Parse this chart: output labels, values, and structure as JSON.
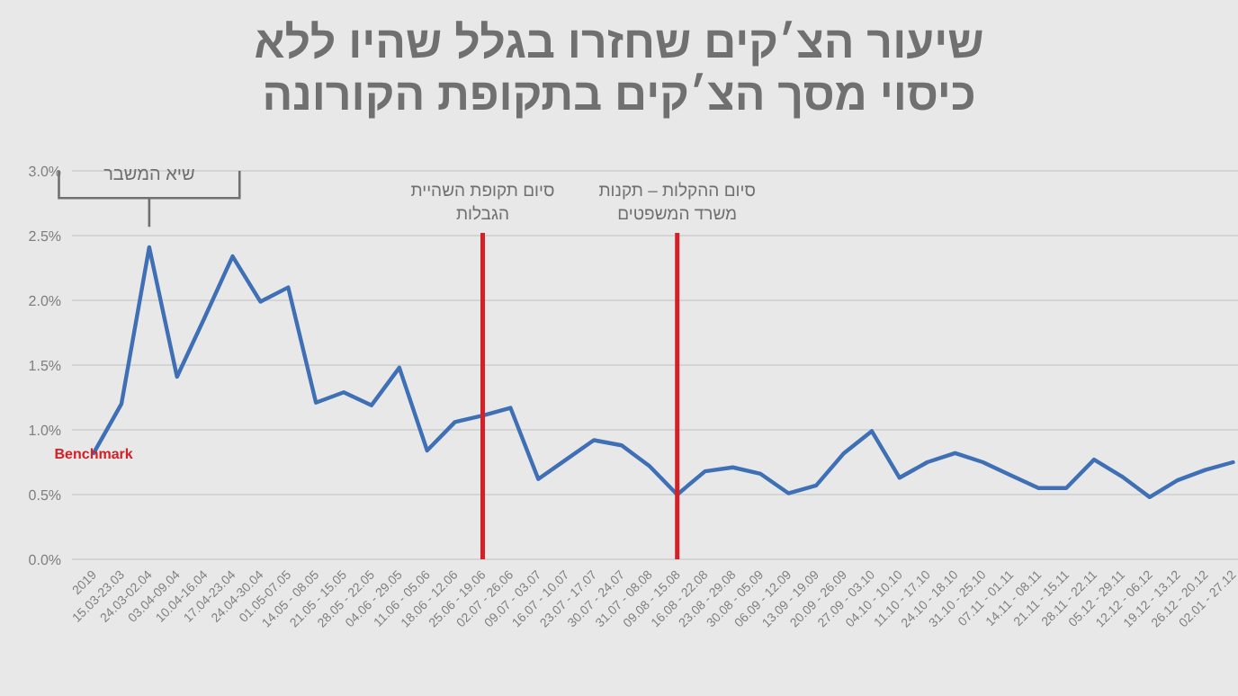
{
  "chart_data": {
    "type": "line",
    "title": "שיעור הצ׳קים שחזרו בגלל שהיו ללא כיסוי מסך הצ׳קים בתקופת הקורונה",
    "categories": [
      "2019",
      "15.03-23.03",
      "24.03-02.04",
      "03.04-09.04",
      "10.04-16.04",
      "17.04-23.04",
      "24.04-30.04",
      "01.05-07.05",
      "14.05 - 08.05",
      "21.05 - 15.05",
      "28.05 - 22.05",
      "04.06 - 29.05",
      "11.06 - 05.06",
      "18.06 - 12.06",
      "25.06 - 19.06",
      "02.07 - 26.06",
      "09.07 - 03.07",
      "16.07 - 10.07",
      "23.07 - 17.07",
      "30.07 - 24.07",
      "31.07 - 08.08",
      "09.08 - 15.08",
      "16.08 - 22.08",
      "23.08 - 29.08",
      "30.08 - 05.09",
      "06.09 - 12.09",
      "13.09 - 19.09",
      "20.09 - 26.09",
      "27.09 - 03.10",
      "04.10 - 10.10",
      "11.10 - 17.10",
      "24.10 - 18.10",
      "31.10 - 25.10",
      "07.11 - 01.11",
      "14.11 - 08.11",
      "21.11 - 15.11",
      "28.11 - 22.11",
      "05.12 - 29.11",
      "12.12 - 06.12",
      "19.12 - 13.12",
      "26.12 - 20.12",
      "02.01 - 27.12"
    ],
    "series": [
      {
        "color": "#3f6fb5",
        "values": [
          0.82,
          1.2,
          2.41,
          1.41,
          1.87,
          2.34,
          1.99,
          2.1,
          1.21,
          1.29,
          1.19,
          1.48,
          0.84,
          1.06,
          1.11,
          1.17,
          0.62,
          0.77,
          0.92,
          0.88,
          0.72,
          0.5,
          0.68,
          0.71,
          0.66,
          0.51,
          0.57,
          0.82,
          0.99,
          0.63,
          0.75,
          0.82,
          0.75,
          0.65,
          0.55,
          0.55,
          0.77,
          0.64,
          0.48,
          0.61,
          0.69,
          0.75
        ]
      }
    ],
    "ylim": [
      0,
      3
    ],
    "yticks": [
      {
        "value": 0,
        "label": "0.0%"
      },
      {
        "value": 0.5,
        "label": "0.5%"
      },
      {
        "value": 1,
        "label": "1.0%"
      },
      {
        "value": 1.5,
        "label": "1.5%"
      },
      {
        "value": 2,
        "label": "2.0%"
      },
      {
        "value": 2.5,
        "label": "2.5%"
      },
      {
        "value": 3,
        "label": "3.0%"
      }
    ],
    "grid": "y",
    "marker": "none",
    "line_style": "solid",
    "ref_lines": [
      {
        "axis": "x",
        "value": "25.06 - 19.06",
        "label": "סיום תקופת השהיית הגבלות",
        "color": "#d42027"
      },
      {
        "axis": "x",
        "value": "09.08 - 15.08",
        "label": "סיום ההקלות – תקנות משרד המשפטים",
        "color": "#d42027"
      }
    ],
    "annotations": [
      "שיא המשבר",
      {
        "text": "Benchmark",
        "x": "2019",
        "y": 0.82
      }
    ]
  }
}
